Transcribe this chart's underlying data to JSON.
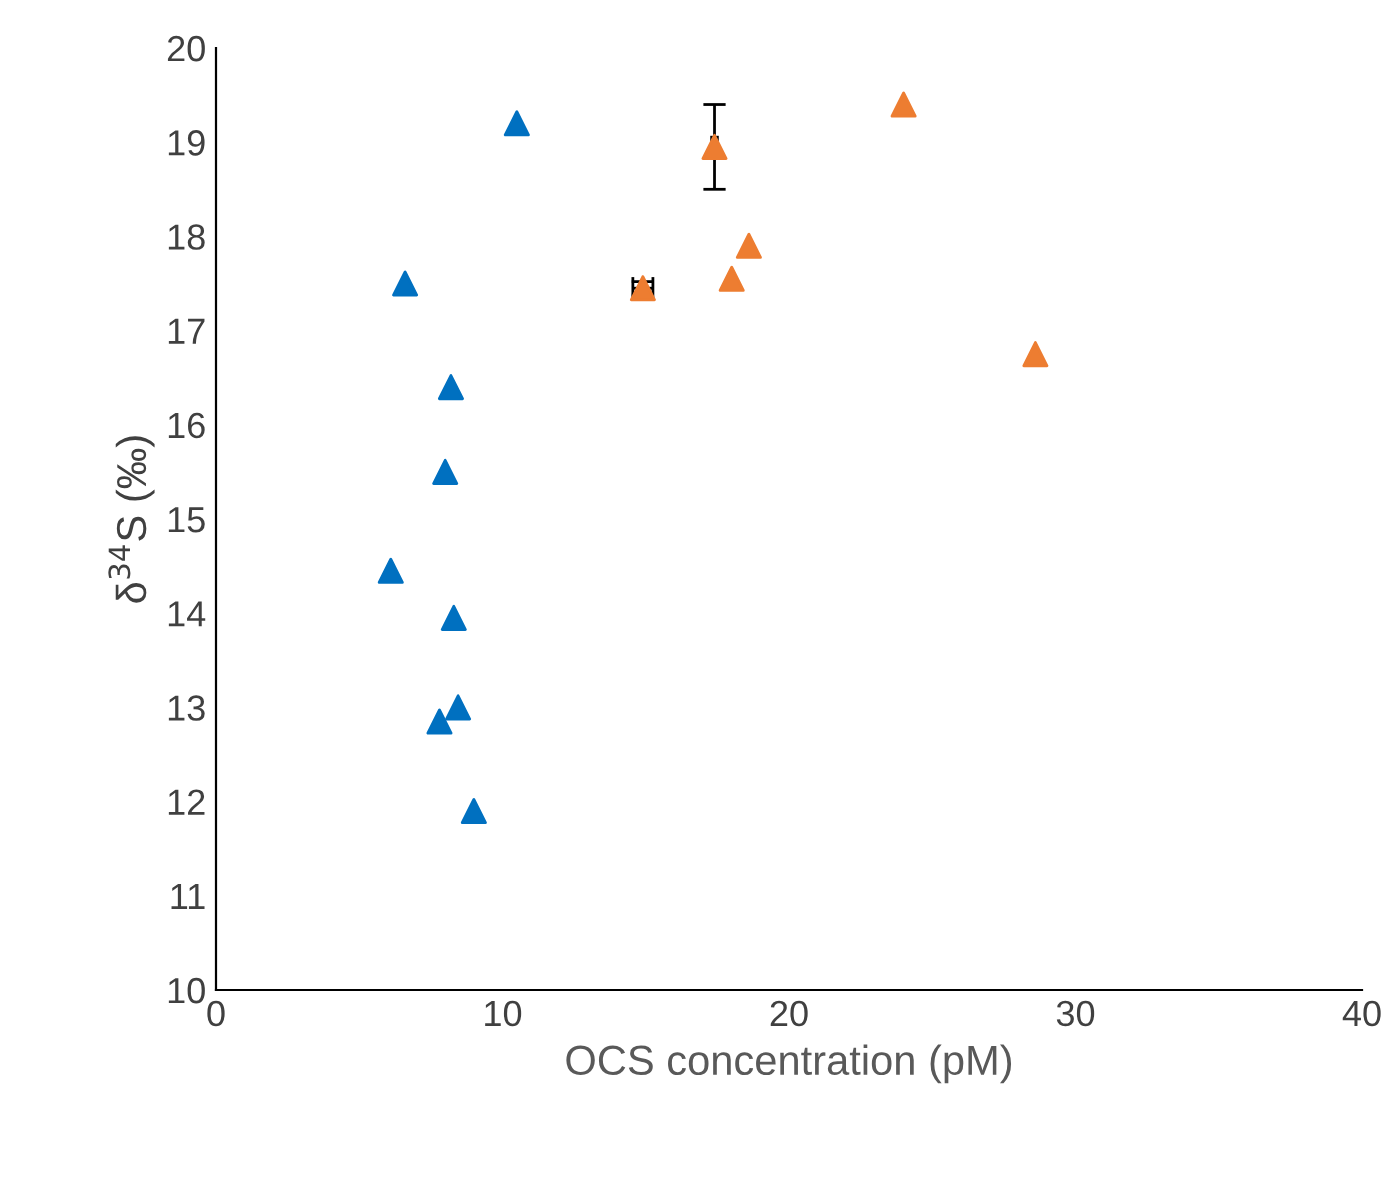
{
  "chart_data": {
    "type": "scatter",
    "xlabel": "OCS concentration (pM)",
    "ylabel": "δ$^{34}$S (‰)",
    "xlim": [
      0,
      40
    ],
    "xticks": [
      0,
      10,
      20,
      30,
      40
    ],
    "ylim": [
      10,
      20
    ],
    "yticks": [
      10,
      11,
      12,
      13,
      14,
      15,
      16,
      17,
      18,
      19,
      20
    ],
    "grid": false,
    "marker": "triangle",
    "series": [
      {
        "color": "#0070c0",
        "x": [
          10.5,
          6.6,
          8.2,
          8.0,
          6.1,
          8.3,
          8.45,
          7.8,
          9.0
        ],
        "values": [
          19.2,
          17.5,
          16.4,
          15.5,
          14.45,
          13.95,
          13.0,
          12.85,
          11.9
        ]
      },
      {
        "color": "#ed7d31",
        "x": [
          14.9,
          17.4,
          18.6,
          18.0,
          24.0,
          28.6
        ],
        "values": [
          17.45,
          18.95,
          17.9,
          17.55,
          19.4,
          16.75
        ],
        "errors": [
          0.07,
          0.45,
          null,
          null,
          null,
          null
        ],
        "xerrors": [
          0.35,
          0.1,
          null,
          null,
          null,
          null
        ]
      }
    ]
  }
}
